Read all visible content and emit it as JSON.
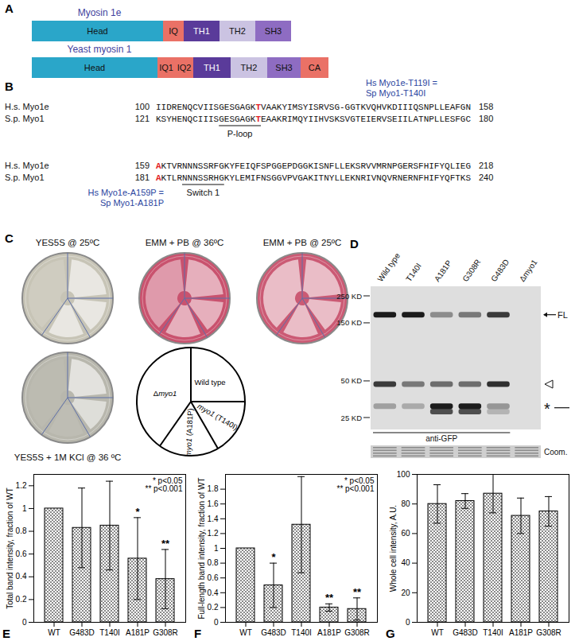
{
  "panel_a": {
    "label": "A",
    "proteins": [
      {
        "name": "Myosin 1e",
        "color": "#3f3f9e",
        "domains": [
          {
            "name": "Head",
            "color": "#2aa6c9"
          },
          {
            "name": "IQ",
            "color": "#ea7166"
          },
          {
            "name": "TH1",
            "color": "#5a3b9a"
          },
          {
            "name": "TH2",
            "color": "#cbc3e2"
          },
          {
            "name": "SH3",
            "color": "#8e6cc2"
          }
        ]
      },
      {
        "name": "Yeast myosin 1",
        "color": "#3f3f9e",
        "domains": [
          {
            "name": "Head",
            "color": "#2aa6c9"
          },
          {
            "name": "IQ1",
            "color": "#ea7166"
          },
          {
            "name": "IQ2",
            "color": "#ea7166"
          },
          {
            "name": "TH1",
            "color": "#5a3b9a"
          },
          {
            "name": "TH2",
            "color": "#cbc3e2"
          },
          {
            "name": "SH3",
            "color": "#8e6cc2"
          },
          {
            "name": "CA",
            "color": "#ea7166"
          }
        ]
      }
    ]
  },
  "panel_b": {
    "label": "B",
    "blocks": [
      {
        "notes": {
          "lines": [
            "Hs Myo1e-T119I =",
            "Sp Myo1-T140I"
          ],
          "color": "#2b45a0"
        },
        "motif": "P-loop",
        "rows": [
          {
            "species": "H.s. Myo1e",
            "start": 100,
            "end": 158,
            "segments": [
              {
                "text": "IIDRENQCVIISGESGAGK"
              },
              {
                "text": "T",
                "color": "#e31e24"
              },
              {
                "text": "VAAKYIMSYISRVSG-GGTKVQHVKDIIIQSNPLLEAFGN"
              }
            ]
          },
          {
            "species": "S.p. Myo1",
            "start": 121,
            "end": 180,
            "segments": [
              {
                "text": "KSYHENQCIIIS"
              },
              {
                "text": "GESGAGK",
                "underline": true
              },
              {
                "text": "T",
                "color": "#e31e24",
                "underline": true
              },
              {
                "text": "EAAKRIMQYIIHVSKSVGTEIERVSEIILATNPLLESFGC"
              }
            ]
          }
        ]
      },
      {
        "notes": {
          "lines": [
            "Hs Myo1e-A159P =",
            "Sp Myo1-A181P"
          ],
          "color": "#2b45a0"
        },
        "motif": "Switch 1",
        "rows": [
          {
            "species": "H.s. Myo1e",
            "start": 159,
            "end": 218,
            "segments": [
              {
                "text": "A",
                "color": "#e31e24"
              },
              {
                "text": "KTVRNNNSSRFGKYFEIQFSPGGEPDGGKISNFLLEKSRVVMRNPGERSFHIFYQLIEG"
              }
            ]
          },
          {
            "species": "S.p. Myo1",
            "start": 181,
            "end": 240,
            "segments": [
              {
                "text": "A",
                "color": "#e31e24"
              },
              {
                "text": "KTLR"
              },
              {
                "text": "NNNSSRHG",
                "underline": true
              },
              {
                "text": "KYLEMIFNSGGVPVGAKITNYLLEKNRIVNQVRNERNFHIFYQFTKS"
              }
            ]
          }
        ]
      }
    ]
  },
  "panel_c": {
    "label": "C",
    "plates": [
      {
        "label": "YES5S @ 25ºC",
        "color": "#c7c4b6"
      },
      {
        "label": "EMM + PB @ 36ºC",
        "color": "#c9526e"
      },
      {
        "label": "EMM + PB @ 25ºC",
        "color": "#cb5a74"
      },
      {
        "label": "YES5S + 1M KCl @ 36 ºC",
        "color": "#b8b7ad"
      }
    ],
    "key": [
      [
        {
          "text": "Wild type"
        }
      ],
      [
        {
          "text": "myo1",
          "italic": true
        },
        {
          "text": " (T140I)"
        }
      ],
      [
        {
          "text": "myo1",
          "italic": true
        },
        {
          "text": " (A181P)"
        }
      ],
      [
        {
          "text": "Δ"
        },
        {
          "text": "myo1",
          "italic": true
        }
      ]
    ]
  },
  "panel_d": {
    "label": "D",
    "lanes": [
      "Wild type",
      "T140I",
      "A181P",
      "G308R",
      "G483D",
      "Δmyo1"
    ],
    "markers": [
      {
        "value": 250,
        "label": "250 KD"
      },
      {
        "value": 150,
        "label": "150 KD"
      },
      {
        "value": 50,
        "label": "50 KD"
      },
      {
        "value": 25,
        "label": "25 KD"
      }
    ],
    "band_labels": {
      "full_length": "FL",
      "degradation": "*"
    },
    "antibody": "anti-GFP",
    "loading": "Coom."
  },
  "chart_data": [
    {
      "type": "bar",
      "panel": "E",
      "ylabel": "Total band intensity, fraction of WT",
      "categories": [
        "WT",
        "G483D",
        "T140I",
        "A181P",
        "G308R"
      ],
      "values": [
        1,
        0.83,
        0.85,
        0.56,
        0.38
      ],
      "errors": [
        null,
        0.35,
        0.39,
        0.36,
        0.26
      ],
      "significance": [
        null,
        null,
        null,
        "*",
        "**"
      ],
      "annotations": [
        "* p<0.05",
        "** p<0.001"
      ],
      "color": "#8a8a8a",
      "ylim": [
        0,
        1.3
      ],
      "yticks": [
        0,
        0.2,
        0.4,
        0.6,
        0.8,
        1,
        1.2
      ]
    },
    {
      "type": "bar",
      "panel": "F",
      "ylabel": "Full-length band intensity, fraction of WT",
      "categories": [
        "WT",
        "G483D",
        "T140I",
        "A181P",
        "G308R"
      ],
      "values": [
        1,
        0.5,
        1.32,
        0.2,
        0.18
      ],
      "errors": [
        null,
        0.3,
        0.65,
        0.05,
        0.15
      ],
      "significance": [
        null,
        "*",
        null,
        "**",
        "**"
      ],
      "annotations": [
        "* p<0.05",
        "** p<0.001"
      ],
      "color": "#8a8a8a",
      "ylim": [
        0,
        2
      ],
      "yticks": [
        0,
        0.2,
        0.4,
        0.6,
        0.8,
        1,
        1.2,
        1.4,
        1.6,
        1.8
      ]
    },
    {
      "type": "bar",
      "panel": "G",
      "ylabel": "Whole cell intensity, A.U.",
      "categories": [
        "WT",
        "G483D",
        "T140I",
        "A181P",
        "G308R"
      ],
      "values": [
        80,
        82,
        87,
        72,
        75
      ],
      "errors": [
        13,
        5,
        13,
        12,
        10
      ],
      "color": "#8a8a8a",
      "ylim": [
        0,
        100
      ],
      "yticks": [
        0,
        20,
        40,
        60,
        80,
        100
      ]
    }
  ]
}
